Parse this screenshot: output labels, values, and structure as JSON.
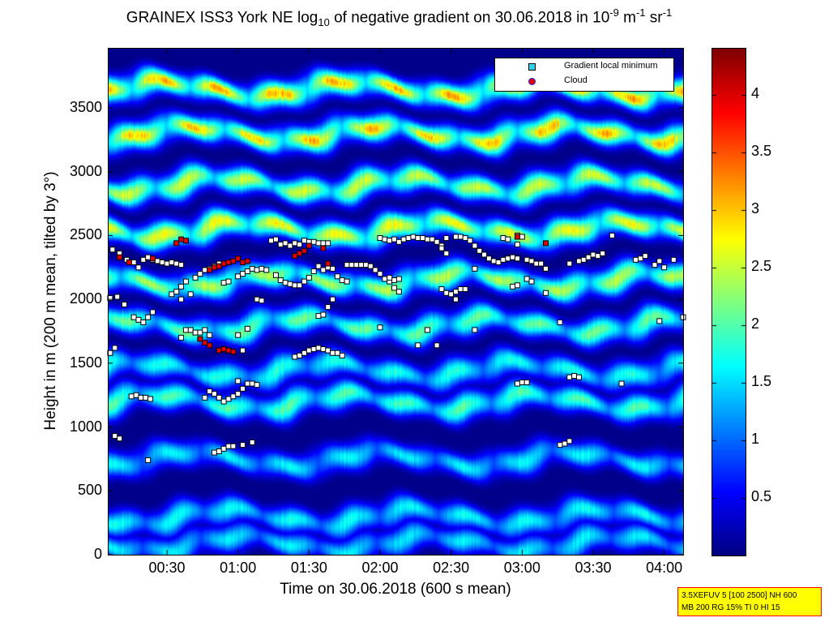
{
  "title": {
    "prefix": "GRAINEX ISS3 York NE log",
    "sub1": "10",
    "middle": " of negative gradient on 30.06.2018 in 10",
    "sup1": "-9",
    "unit1": " m",
    "sup2": "-1",
    "unit2": " sr",
    "sup3": "-1"
  },
  "legend": {
    "items": [
      {
        "label": "Gradient local minimum",
        "marker": "square",
        "color": "#30d0e8"
      },
      {
        "label": "Cloud",
        "marker": "circle",
        "color": "#dd0000"
      }
    ]
  },
  "info_box": {
    "line1": "3.5XEFUV 5 [100 2500] NH 600",
    "line2": "MB 200 RG 15% TI 0 HI 15"
  },
  "colors": {
    "cloud": "#dd0000",
    "minimum_outline": "#000000",
    "info_bg": "#ffff00",
    "info_border": "#ff0000"
  },
  "chart_data": {
    "type": "heatmap",
    "xlabel": "Time on 30.06.2018 (600 s mean)",
    "ylabel": "Height in m (200 m mean, tilted by 3°)",
    "x_tick_labels": [
      "00:30",
      "01:00",
      "01:30",
      "02:00",
      "02:30",
      "03:00",
      "03:30",
      "04:00"
    ],
    "x_tick_minutes": [
      30,
      60,
      90,
      120,
      150,
      180,
      210,
      240
    ],
    "xlim_minutes": [
      5,
      248
    ],
    "y_tick_labels": [
      "0",
      "500",
      "1000",
      "1500",
      "2000",
      "2500",
      "3000",
      "3500"
    ],
    "y_tick_values": [
      0,
      500,
      1000,
      1500,
      2000,
      2500,
      3000,
      3500
    ],
    "ylim": [
      0,
      3970
    ],
    "colorbar": {
      "colormap": "jet",
      "range": [
        0,
        4.4
      ],
      "tick_labels": [
        "0.5",
        "1",
        "1.5",
        "2",
        "2.5",
        "3",
        "3.5",
        "4"
      ],
      "tick_values": [
        0.5,
        1,
        1.5,
        2,
        2.5,
        3,
        3.5,
        4
      ]
    },
    "layers": [
      {
        "height_m": 90,
        "value": 1.5
      },
      {
        "height_m": 300,
        "value": 1.6
      },
      {
        "height_m": 750,
        "value": 1.55
      },
      {
        "height_m": 1200,
        "value": 1.9
      },
      {
        "height_m": 1450,
        "value": 1.7
      },
      {
        "height_m": 1800,
        "value": 2.0
      },
      {
        "height_m": 2150,
        "value": 2.3
      },
      {
        "height_m": 2550,
        "value": 2.6
      },
      {
        "height_m": 2900,
        "value": 2.4
      },
      {
        "height_m": 3300,
        "value": 2.6
      },
      {
        "height_m": 3650,
        "value": 2.7
      }
    ],
    "series": [
      {
        "name": "Gradient local minimum",
        "points": [
          [
            6,
            1580
          ],
          [
            8,
            1620
          ],
          [
            6,
            2010
          ],
          [
            9,
            2020
          ],
          [
            12,
            1960
          ],
          [
            7,
            2390
          ],
          [
            10,
            2360
          ],
          [
            13,
            2310
          ],
          [
            16,
            2290
          ],
          [
            18,
            2250
          ],
          [
            20,
            2310
          ],
          [
            22,
            2330
          ],
          [
            24,
            2310
          ],
          [
            26,
            2300
          ],
          [
            28,
            2290
          ],
          [
            30,
            2280
          ],
          [
            32,
            2290
          ],
          [
            34,
            2280
          ],
          [
            36,
            2270
          ],
          [
            16,
            1860
          ],
          [
            18,
            1840
          ],
          [
            20,
            1820
          ],
          [
            22,
            1860
          ],
          [
            24,
            1900
          ],
          [
            15,
            1240
          ],
          [
            17,
            1250
          ],
          [
            19,
            1230
          ],
          [
            21,
            1230
          ],
          [
            23,
            1220
          ],
          [
            8,
            930
          ],
          [
            10,
            910
          ],
          [
            22,
            740
          ],
          [
            32,
            2040
          ],
          [
            34,
            2060
          ],
          [
            36,
            2100
          ],
          [
            38,
            2140
          ],
          [
            36,
            2000
          ],
          [
            40,
            2040
          ],
          [
            38,
            1760
          ],
          [
            40,
            1760
          ],
          [
            42,
            1740
          ],
          [
            44,
            1740
          ],
          [
            46,
            1760
          ],
          [
            48,
            1720
          ],
          [
            36,
            1700
          ],
          [
            42,
            2170
          ],
          [
            44,
            2200
          ],
          [
            46,
            2230
          ],
          [
            48,
            2240
          ],
          [
            50,
            2260
          ],
          [
            52,
            2280
          ],
          [
            54,
            2130
          ],
          [
            56,
            2140
          ],
          [
            60,
            2180
          ],
          [
            62,
            2200
          ],
          [
            64,
            2220
          ],
          [
            66,
            2240
          ],
          [
            68,
            2230
          ],
          [
            70,
            2240
          ],
          [
            72,
            2230
          ],
          [
            46,
            1230
          ],
          [
            48,
            1280
          ],
          [
            50,
            1260
          ],
          [
            52,
            1230
          ],
          [
            54,
            1200
          ],
          [
            56,
            1220
          ],
          [
            58,
            1240
          ],
          [
            60,
            1260
          ],
          [
            62,
            1300
          ],
          [
            64,
            1340
          ],
          [
            66,
            1340
          ],
          [
            68,
            1330
          ],
          [
            60,
            1360
          ],
          [
            60,
            1720
          ],
          [
            64,
            1770
          ],
          [
            62,
            1600
          ],
          [
            50,
            800
          ],
          [
            52,
            810
          ],
          [
            54,
            830
          ],
          [
            56,
            850
          ],
          [
            58,
            850
          ],
          [
            62,
            860
          ],
          [
            66,
            880
          ],
          [
            68,
            2000
          ],
          [
            70,
            1990
          ],
          [
            74,
            2460
          ],
          [
            76,
            2470
          ],
          [
            78,
            2430
          ],
          [
            80,
            2440
          ],
          [
            82,
            2420
          ],
          [
            84,
            2440
          ],
          [
            86,
            2430
          ],
          [
            88,
            2460
          ],
          [
            90,
            2450
          ],
          [
            92,
            2450
          ],
          [
            94,
            2440
          ],
          [
            96,
            2440
          ],
          [
            98,
            2440
          ],
          [
            76,
            2190
          ],
          [
            78,
            2150
          ],
          [
            80,
            2130
          ],
          [
            82,
            2120
          ],
          [
            84,
            2110
          ],
          [
            86,
            2110
          ],
          [
            88,
            2140
          ],
          [
            90,
            2170
          ],
          [
            92,
            2220
          ],
          [
            94,
            2260
          ],
          [
            96,
            2230
          ],
          [
            98,
            2250
          ],
          [
            100,
            2240
          ],
          [
            102,
            2180
          ],
          [
            104,
            2150
          ],
          [
            106,
            2140
          ],
          [
            84,
            1550
          ],
          [
            86,
            1560
          ],
          [
            88,
            1580
          ],
          [
            90,
            1600
          ],
          [
            92,
            1610
          ],
          [
            94,
            1620
          ],
          [
            96,
            1610
          ],
          [
            98,
            1600
          ],
          [
            100,
            1580
          ],
          [
            102,
            1580
          ],
          [
            104,
            1560
          ],
          [
            94,
            1870
          ],
          [
            96,
            1880
          ],
          [
            98,
            1940
          ],
          [
            100,
            2000
          ],
          [
            106,
            2270
          ],
          [
            108,
            2270
          ],
          [
            110,
            2270
          ],
          [
            112,
            2270
          ],
          [
            114,
            2270
          ],
          [
            116,
            2260
          ],
          [
            118,
            2230
          ],
          [
            120,
            2200
          ],
          [
            122,
            2160
          ],
          [
            124,
            2140
          ],
          [
            126,
            2150
          ],
          [
            128,
            2160
          ],
          [
            126,
            2090
          ],
          [
            128,
            2060
          ],
          [
            124,
            2170
          ],
          [
            120,
            2480
          ],
          [
            122,
            2470
          ],
          [
            124,
            2460
          ],
          [
            126,
            2470
          ],
          [
            128,
            2450
          ],
          [
            130,
            2470
          ],
          [
            132,
            2480
          ],
          [
            134,
            2490
          ],
          [
            136,
            2480
          ],
          [
            138,
            2480
          ],
          [
            140,
            2470
          ],
          [
            142,
            2470
          ],
          [
            144,
            2450
          ],
          [
            146,
            2420
          ],
          [
            148,
            2480
          ],
          [
            146,
            2400
          ],
          [
            148,
            2360
          ],
          [
            120,
            1780
          ],
          [
            136,
            1640
          ],
          [
            146,
            2080
          ],
          [
            148,
            2050
          ],
          [
            150,
            2040
          ],
          [
            152,
            2060
          ],
          [
            154,
            2080
          ],
          [
            156,
            2080
          ],
          [
            152,
            2000
          ],
          [
            152,
            2490
          ],
          [
            154,
            2490
          ],
          [
            156,
            2480
          ],
          [
            158,
            2460
          ],
          [
            160,
            2420
          ],
          [
            162,
            2380
          ],
          [
            164,
            2350
          ],
          [
            166,
            2320
          ],
          [
            168,
            2300
          ],
          [
            170,
            2290
          ],
          [
            172,
            2310
          ],
          [
            174,
            2320
          ],
          [
            176,
            2330
          ],
          [
            178,
            2320
          ],
          [
            160,
            2240
          ],
          [
            172,
            2480
          ],
          [
            174,
            2470
          ],
          [
            178,
            2500
          ],
          [
            180,
            2490
          ],
          [
            178,
            2430
          ],
          [
            182,
            2310
          ],
          [
            184,
            2300
          ],
          [
            186,
            2280
          ],
          [
            188,
            2280
          ],
          [
            176,
            2100
          ],
          [
            178,
            2110
          ],
          [
            182,
            2160
          ],
          [
            190,
            2240
          ],
          [
            184,
            2140
          ],
          [
            140,
            1760
          ],
          [
            160,
            1760
          ],
          [
            144,
            1640
          ],
          [
            178,
            1340
          ],
          [
            180,
            1350
          ],
          [
            182,
            1350
          ],
          [
            200,
            1390
          ],
          [
            202,
            1400
          ],
          [
            204,
            1390
          ],
          [
            196,
            860
          ],
          [
            198,
            870
          ],
          [
            200,
            890
          ],
          [
            196,
            1820
          ],
          [
            200,
            2280
          ],
          [
            204,
            2300
          ],
          [
            206,
            2310
          ],
          [
            208,
            2330
          ],
          [
            210,
            2350
          ],
          [
            212,
            2340
          ],
          [
            214,
            2360
          ],
          [
            218,
            2500
          ],
          [
            190,
            2050
          ],
          [
            228,
            2310
          ],
          [
            230,
            2320
          ],
          [
            232,
            2340
          ],
          [
            236,
            2270
          ],
          [
            238,
            2300
          ],
          [
            240,
            2250
          ],
          [
            244,
            2310
          ],
          [
            248,
            1860
          ],
          [
            238,
            1830
          ],
          [
            222,
            1340
          ]
        ]
      },
      {
        "name": "Cloud",
        "points": [
          [
            10,
            2330
          ],
          [
            14,
            2290
          ],
          [
            24,
            2320
          ],
          [
            34,
            2440
          ],
          [
            36,
            2470
          ],
          [
            38,
            2460
          ],
          [
            48,
            2230
          ],
          [
            50,
            2250
          ],
          [
            52,
            2260
          ],
          [
            54,
            2280
          ],
          [
            56,
            2290
          ],
          [
            58,
            2300
          ],
          [
            60,
            2320
          ],
          [
            62,
            2290
          ],
          [
            64,
            2300
          ],
          [
            44,
            1690
          ],
          [
            46,
            1660
          ],
          [
            48,
            1640
          ],
          [
            52,
            1600
          ],
          [
            54,
            1610
          ],
          [
            56,
            1600
          ],
          [
            58,
            1590
          ],
          [
            84,
            2340
          ],
          [
            86,
            2360
          ],
          [
            88,
            2380
          ],
          [
            90,
            2420
          ],
          [
            96,
            2400
          ],
          [
            98,
            2280
          ],
          [
            178,
            2490
          ],
          [
            190,
            2440
          ]
        ]
      }
    ]
  }
}
